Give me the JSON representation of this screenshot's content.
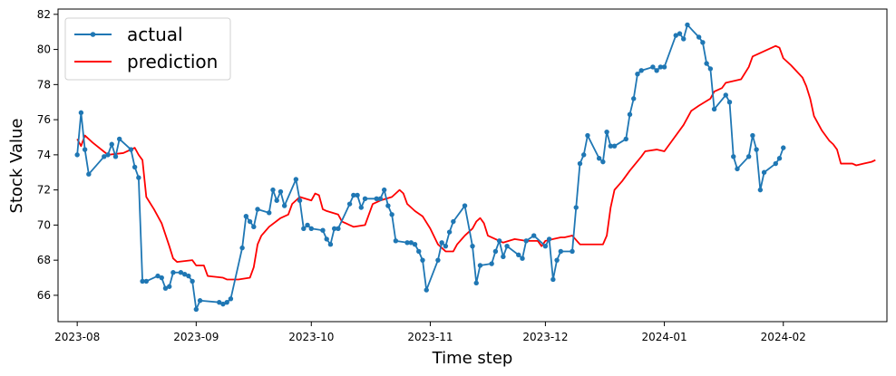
{
  "chart_data": {
    "type": "line",
    "xlabel": "Time step",
    "ylabel": "Stock Value",
    "x_tick_labels": [
      "2023-08",
      "2023-09",
      "2023-10",
      "2023-11",
      "2023-12",
      "2024-01",
      "2024-02"
    ],
    "y_tick_labels": [
      "66",
      "68",
      "70",
      "72",
      "74",
      "76",
      "78",
      "80",
      "82"
    ],
    "ylim": [
      64.5,
      82.3
    ],
    "xlim": [
      "2023-07-27",
      "2024-02-28"
    ],
    "legend": {
      "placement": "top-left",
      "entries": [
        "actual",
        "prediction"
      ]
    },
    "colors": {
      "actual": "#1f77b4",
      "prediction": "#ff0000"
    },
    "series": [
      {
        "name": "actual",
        "marker": "circle",
        "points": [
          [
            "2023-08-01",
            74.0
          ],
          [
            "2023-08-02",
            76.4
          ],
          [
            "2023-08-03",
            74.3
          ],
          [
            "2023-08-04",
            72.9
          ],
          [
            "2023-08-08",
            73.9
          ],
          [
            "2023-08-09",
            74.0
          ],
          [
            "2023-08-10",
            74.6
          ],
          [
            "2023-08-11",
            73.9
          ],
          [
            "2023-08-12",
            74.9
          ],
          [
            "2023-08-15",
            74.3
          ],
          [
            "2023-08-16",
            73.3
          ],
          [
            "2023-08-17",
            72.7
          ],
          [
            "2023-08-18",
            66.8
          ],
          [
            "2023-08-19",
            66.8
          ],
          [
            "2023-08-22",
            67.1
          ],
          [
            "2023-08-23",
            67.0
          ],
          [
            "2023-08-24",
            66.4
          ],
          [
            "2023-08-25",
            66.5
          ],
          [
            "2023-08-26",
            67.3
          ],
          [
            "2023-08-28",
            67.3
          ],
          [
            "2023-08-29",
            67.2
          ],
          [
            "2023-08-30",
            67.1
          ],
          [
            "2023-08-31",
            66.8
          ],
          [
            "2023-09-01",
            65.2
          ],
          [
            "2023-09-02",
            65.7
          ],
          [
            "2023-09-07",
            65.6
          ],
          [
            "2023-09-08",
            65.5
          ],
          [
            "2023-09-09",
            65.6
          ],
          [
            "2023-09-10",
            65.8
          ],
          [
            "2023-09-13",
            68.7
          ],
          [
            "2023-09-14",
            70.5
          ],
          [
            "2023-09-15",
            70.2
          ],
          [
            "2023-09-16",
            69.9
          ],
          [
            "2023-09-17",
            70.9
          ],
          [
            "2023-09-20",
            70.7
          ],
          [
            "2023-09-21",
            72.0
          ],
          [
            "2023-09-22",
            71.4
          ],
          [
            "2023-09-23",
            71.9
          ],
          [
            "2023-09-24",
            71.1
          ],
          [
            "2023-09-27",
            72.6
          ],
          [
            "2023-09-28",
            71.4
          ],
          [
            "2023-09-29",
            69.8
          ],
          [
            "2023-09-30",
            70.0
          ],
          [
            "2023-10-01",
            69.8
          ],
          [
            "2023-10-04",
            69.7
          ],
          [
            "2023-10-05",
            69.2
          ],
          [
            "2023-10-06",
            68.9
          ],
          [
            "2023-10-07",
            69.8
          ],
          [
            "2023-10-08",
            69.8
          ],
          [
            "2023-10-11",
            71.2
          ],
          [
            "2023-10-12",
            71.7
          ],
          [
            "2023-10-13",
            71.7
          ],
          [
            "2023-10-14",
            71.0
          ],
          [
            "2023-10-15",
            71.5
          ],
          [
            "2023-10-18",
            71.5
          ],
          [
            "2023-10-19",
            71.5
          ],
          [
            "2023-10-20",
            72.0
          ],
          [
            "2023-10-21",
            71.1
          ],
          [
            "2023-10-22",
            70.6
          ],
          [
            "2023-10-23",
            69.1
          ],
          [
            "2023-10-26",
            69.0
          ],
          [
            "2023-10-27",
            69.0
          ],
          [
            "2023-10-28",
            68.9
          ],
          [
            "2023-10-29",
            68.5
          ],
          [
            "2023-10-30",
            68.0
          ],
          [
            "2023-10-31",
            66.3
          ],
          [
            "2023-11-03",
            68.0
          ],
          [
            "2023-11-04",
            69.0
          ],
          [
            "2023-11-05",
            68.8
          ],
          [
            "2023-11-06",
            69.6
          ],
          [
            "2023-11-07",
            70.2
          ],
          [
            "2023-11-10",
            71.1
          ],
          [
            "2023-11-12",
            68.8
          ],
          [
            "2023-11-13",
            66.7
          ],
          [
            "2023-11-14",
            67.7
          ],
          [
            "2023-11-17",
            67.8
          ],
          [
            "2023-11-18",
            68.5
          ],
          [
            "2023-11-19",
            69.1
          ],
          [
            "2023-11-20",
            68.2
          ],
          [
            "2023-11-21",
            68.8
          ],
          [
            "2023-11-24",
            68.3
          ],
          [
            "2023-11-25",
            68.1
          ],
          [
            "2023-11-26",
            69.1
          ],
          [
            "2023-11-28",
            69.4
          ],
          [
            "2023-12-01",
            68.8
          ],
          [
            "2023-12-02",
            69.2
          ],
          [
            "2023-12-03",
            66.9
          ],
          [
            "2023-12-04",
            68.0
          ],
          [
            "2023-12-05",
            68.5
          ],
          [
            "2023-12-08",
            68.5
          ],
          [
            "2023-12-09",
            71.0
          ],
          [
            "2023-12-10",
            73.5
          ],
          [
            "2023-12-11",
            74.0
          ],
          [
            "2023-12-12",
            75.1
          ],
          [
            "2023-12-15",
            73.8
          ],
          [
            "2023-12-16",
            73.6
          ],
          [
            "2023-12-17",
            75.3
          ],
          [
            "2023-12-18",
            74.5
          ],
          [
            "2023-12-19",
            74.5
          ],
          [
            "2023-12-22",
            74.9
          ],
          [
            "2023-12-23",
            76.3
          ],
          [
            "2023-12-24",
            77.2
          ],
          [
            "2023-12-25",
            78.6
          ],
          [
            "2023-12-26",
            78.8
          ],
          [
            "2023-12-29",
            79.0
          ],
          [
            "2023-12-30",
            78.8
          ],
          [
            "2023-12-31",
            79.0
          ],
          [
            "2024-01-01",
            79.0
          ],
          [
            "2024-01-04",
            80.8
          ],
          [
            "2024-01-05",
            80.9
          ],
          [
            "2024-01-06",
            80.6
          ],
          [
            "2024-01-07",
            81.4
          ],
          [
            "2024-01-10",
            80.7
          ],
          [
            "2024-01-11",
            80.4
          ],
          [
            "2024-01-12",
            79.2
          ],
          [
            "2024-01-13",
            78.9
          ],
          [
            "2024-01-14",
            76.6
          ],
          [
            "2024-01-17",
            77.4
          ],
          [
            "2024-01-18",
            77.0
          ],
          [
            "2024-01-19",
            73.9
          ],
          [
            "2024-01-20",
            73.2
          ],
          [
            "2024-01-23",
            73.9
          ],
          [
            "2024-01-24",
            75.1
          ],
          [
            "2024-01-25",
            74.3
          ],
          [
            "2024-01-26",
            72.0
          ],
          [
            "2024-01-27",
            73.0
          ],
          [
            "2024-01-30",
            73.5
          ],
          [
            "2024-01-31",
            73.8
          ],
          [
            "2024-02-01",
            74.4
          ]
        ]
      },
      {
        "name": "prediction",
        "marker": "none",
        "points": [
          [
            "2023-08-01",
            74.9
          ],
          [
            "2023-08-02",
            74.5
          ],
          [
            "2023-08-03",
            75.1
          ],
          [
            "2023-08-05",
            74.7
          ],
          [
            "2023-08-09",
            74.0
          ],
          [
            "2023-08-13",
            74.1
          ],
          [
            "2023-08-16",
            74.4
          ],
          [
            "2023-08-17",
            74.0
          ],
          [
            "2023-08-18",
            73.7
          ],
          [
            "2023-08-19",
            71.6
          ],
          [
            "2023-08-21",
            70.9
          ],
          [
            "2023-08-23",
            70.1
          ],
          [
            "2023-08-25",
            68.8
          ],
          [
            "2023-08-26",
            68.1
          ],
          [
            "2023-08-27",
            67.9
          ],
          [
            "2023-08-31",
            68.0
          ],
          [
            "2023-09-01",
            67.7
          ],
          [
            "2023-09-03",
            67.7
          ],
          [
            "2023-09-04",
            67.1
          ],
          [
            "2023-09-08",
            67.0
          ],
          [
            "2023-09-09",
            66.9
          ],
          [
            "2023-09-10",
            66.9
          ],
          [
            "2023-09-12",
            66.9
          ],
          [
            "2023-09-15",
            67.0
          ],
          [
            "2023-09-16",
            67.6
          ],
          [
            "2023-09-17",
            68.9
          ],
          [
            "2023-09-18",
            69.4
          ],
          [
            "2023-09-20",
            69.9
          ],
          [
            "2023-09-23",
            70.4
          ],
          [
            "2023-09-25",
            70.6
          ],
          [
            "2023-09-26",
            71.2
          ],
          [
            "2023-09-28",
            71.6
          ],
          [
            "2023-10-01",
            71.4
          ],
          [
            "2023-10-02",
            71.8
          ],
          [
            "2023-10-03",
            71.7
          ],
          [
            "2023-10-04",
            70.9
          ],
          [
            "2023-10-05",
            70.8
          ],
          [
            "2023-10-08",
            70.6
          ],
          [
            "2023-10-09",
            70.2
          ],
          [
            "2023-10-11",
            70.0
          ],
          [
            "2023-10-12",
            69.9
          ],
          [
            "2023-10-15",
            70.0
          ],
          [
            "2023-10-17",
            71.2
          ],
          [
            "2023-10-19",
            71.4
          ],
          [
            "2023-10-22",
            71.6
          ],
          [
            "2023-10-24",
            72.0
          ],
          [
            "2023-10-25",
            71.8
          ],
          [
            "2023-10-26",
            71.2
          ],
          [
            "2023-10-28",
            70.8
          ],
          [
            "2023-10-30",
            70.5
          ],
          [
            "2023-11-01",
            69.8
          ],
          [
            "2023-11-03",
            68.9
          ],
          [
            "2023-11-05",
            68.5
          ],
          [
            "2023-11-07",
            68.5
          ],
          [
            "2023-11-08",
            68.9
          ],
          [
            "2023-11-10",
            69.4
          ],
          [
            "2023-11-12",
            69.8
          ],
          [
            "2023-11-13",
            70.2
          ],
          [
            "2023-11-14",
            70.4
          ],
          [
            "2023-11-15",
            70.1
          ],
          [
            "2023-11-16",
            69.4
          ],
          [
            "2023-11-18",
            69.2
          ],
          [
            "2023-11-20",
            69.0
          ],
          [
            "2023-11-23",
            69.2
          ],
          [
            "2023-11-26",
            69.1
          ],
          [
            "2023-11-29",
            69.1
          ],
          [
            "2023-11-30",
            68.8
          ],
          [
            "2023-12-01",
            69.1
          ],
          [
            "2023-12-03",
            69.2
          ],
          [
            "2023-12-05",
            69.3
          ],
          [
            "2023-12-06",
            69.3
          ],
          [
            "2023-12-08",
            69.4
          ],
          [
            "2023-12-10",
            68.9
          ],
          [
            "2023-12-13",
            68.9
          ],
          [
            "2023-12-16",
            68.9
          ],
          [
            "2023-12-17",
            69.4
          ],
          [
            "2023-12-18",
            71.0
          ],
          [
            "2023-12-19",
            72.0
          ],
          [
            "2023-12-21",
            72.5
          ],
          [
            "2023-12-23",
            73.1
          ],
          [
            "2023-12-26",
            73.9
          ],
          [
            "2023-12-27",
            74.2
          ],
          [
            "2023-12-30",
            74.3
          ],
          [
            "2024-01-01",
            74.2
          ],
          [
            "2024-01-03",
            74.8
          ],
          [
            "2024-01-06",
            75.7
          ],
          [
            "2024-01-08",
            76.5
          ],
          [
            "2024-01-10",
            76.8
          ],
          [
            "2024-01-13",
            77.2
          ],
          [
            "2024-01-14",
            77.6
          ],
          [
            "2024-01-16",
            77.8
          ],
          [
            "2024-01-17",
            78.1
          ],
          [
            "2024-01-21",
            78.3
          ],
          [
            "2024-01-23",
            79.0
          ],
          [
            "2024-01-24",
            79.6
          ],
          [
            "2024-01-26",
            79.8
          ],
          [
            "2024-01-30",
            80.2
          ],
          [
            "2024-01-31",
            80.1
          ],
          [
            "2024-02-01",
            79.5
          ],
          [
            "2024-02-03",
            79.1
          ],
          [
            "2024-02-06",
            78.4
          ],
          [
            "2024-02-07",
            77.9
          ],
          [
            "2024-02-08",
            77.2
          ],
          [
            "2024-02-09",
            76.2
          ],
          [
            "2024-02-11",
            75.4
          ],
          [
            "2024-02-13",
            74.8
          ],
          [
            "2024-02-14",
            74.6
          ],
          [
            "2024-02-15",
            74.3
          ],
          [
            "2024-02-16",
            73.5
          ],
          [
            "2024-02-19",
            73.5
          ],
          [
            "2024-02-20",
            73.4
          ],
          [
            "2024-02-22",
            73.5
          ],
          [
            "2024-02-24",
            73.6
          ],
          [
            "2024-02-25",
            73.7
          ]
        ]
      }
    ]
  }
}
